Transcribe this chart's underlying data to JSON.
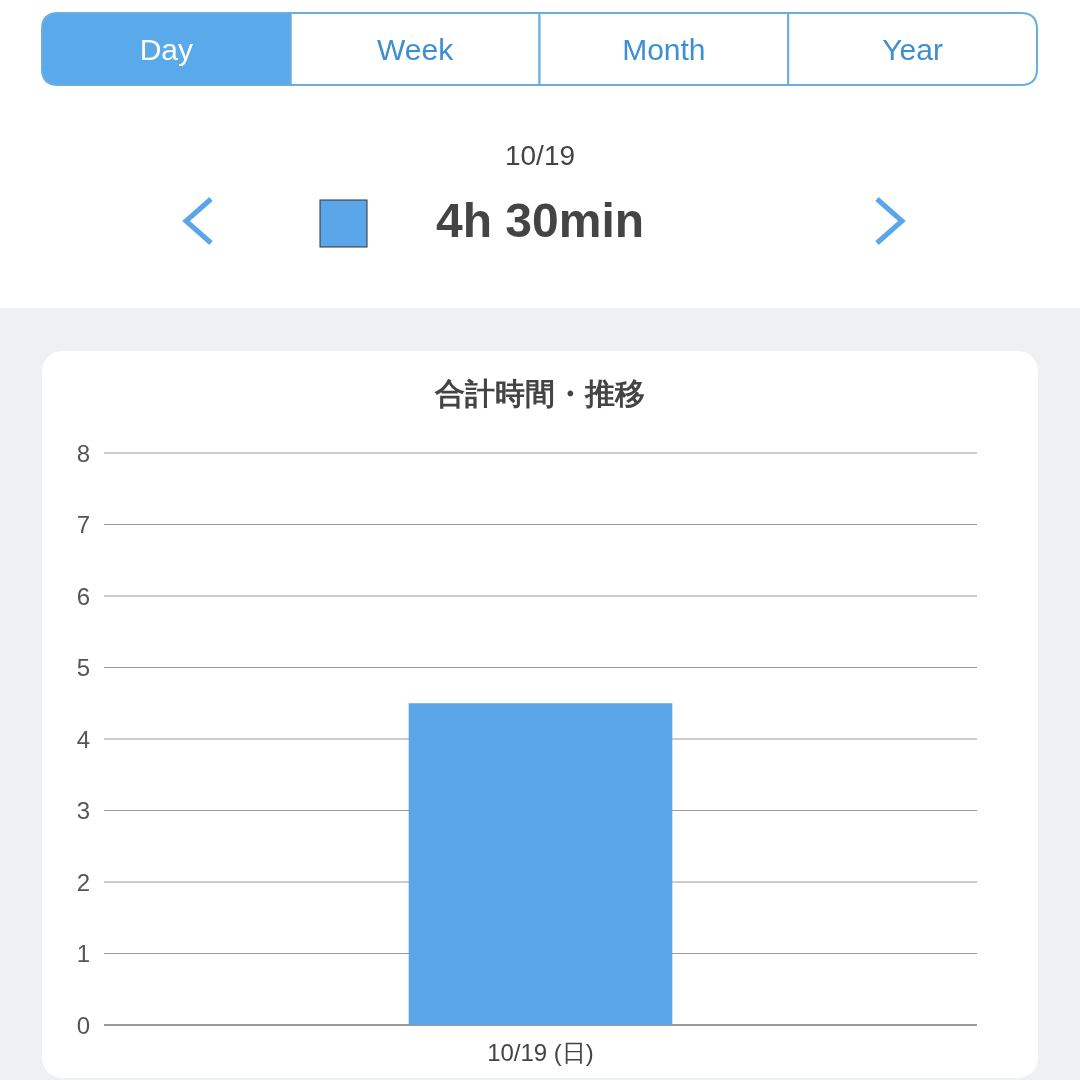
{
  "chart_data": {
    "type": "bar",
    "title": "合計時間・推移",
    "categories": [
      "10/19 (日)"
    ],
    "values": [
      4.5
    ],
    "color": "#5aa6e8",
    "ylim": [
      0,
      8
    ],
    "yticks": [
      0,
      1,
      2,
      3,
      4,
      5,
      6,
      7,
      8
    ],
    "grid": "y",
    "annotations": [
      "Day",
      "Week",
      "Month",
      "Year",
      "10/19",
      "4h 30min"
    ]
  }
}
